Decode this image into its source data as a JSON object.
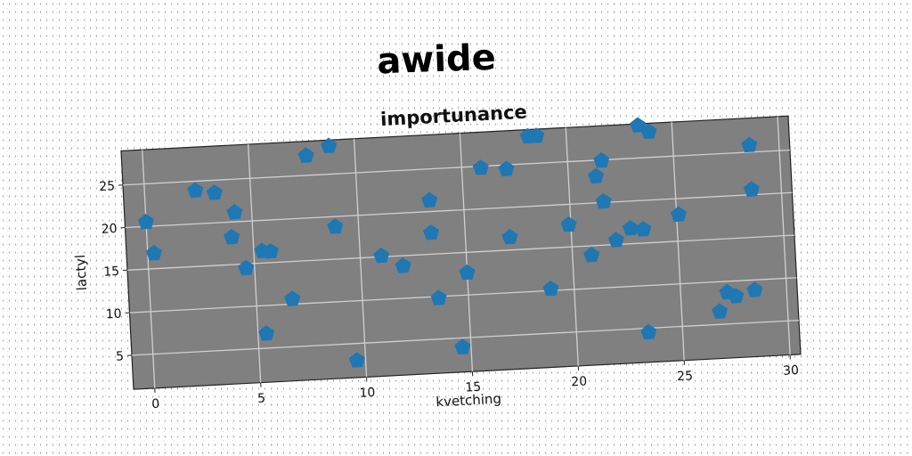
{
  "chart_data": {
    "type": "scatter",
    "suptitle": "awide",
    "title": "importunance",
    "xlabel": "kvetching",
    "ylabel": "lactyl",
    "xlim": [
      -1,
      30.5
    ],
    "ylim": [
      1,
      29
    ],
    "xticks": [
      0,
      5,
      10,
      15,
      20,
      25,
      30
    ],
    "yticks": [
      5,
      10,
      15,
      20,
      25
    ],
    "grid": true,
    "marker": "pentagon",
    "background": "#808080",
    "point_color": "#1f77b4",
    "points": [
      [
        0,
        20.5
      ],
      [
        0.3,
        16.8
      ],
      [
        2.4,
        23.9
      ],
      [
        3.3,
        23.5
      ],
      [
        4.2,
        21.1
      ],
      [
        4.0,
        18.2
      ],
      [
        4.6,
        14.5
      ],
      [
        5.4,
        16.4
      ],
      [
        5.8,
        16.3
      ],
      [
        5.4,
        6.7
      ],
      [
        6.7,
        10.6
      ],
      [
        7.7,
        27.3
      ],
      [
        8.8,
        28.3
      ],
      [
        8.9,
        18.8
      ],
      [
        9.6,
        3.0
      ],
      [
        11.0,
        15.1
      ],
      [
        12.0,
        13.8
      ],
      [
        13.4,
        21.3
      ],
      [
        13.4,
        17.5
      ],
      [
        13.6,
        9.8
      ],
      [
        14.6,
        3.9
      ],
      [
        15.0,
        12.6
      ],
      [
        15.9,
        24.8
      ],
      [
        17.1,
        24.5
      ],
      [
        17.1,
        16.5
      ],
      [
        18.2,
        28.2
      ],
      [
        18.6,
        28.2
      ],
      [
        18.9,
        10.2
      ],
      [
        19.9,
        17.6
      ],
      [
        20.9,
        13.9
      ],
      [
        21.3,
        23.1
      ],
      [
        21.6,
        24.9
      ],
      [
        21.6,
        20.1
      ],
      [
        22.1,
        15.5
      ],
      [
        22.8,
        16.8
      ],
      [
        23.4,
        16.6
      ],
      [
        23.4,
        28.8
      ],
      [
        23.9,
        28.0
      ],
      [
        23.4,
        4.5
      ],
      [
        25.1,
        18.1
      ],
      [
        26.8,
        6.5
      ],
      [
        27.2,
        8.7
      ],
      [
        27.6,
        8.2
      ],
      [
        28.5,
        8.8
      ],
      [
        28.6,
        25.8
      ],
      [
        28.6,
        20.6
      ]
    ]
  }
}
